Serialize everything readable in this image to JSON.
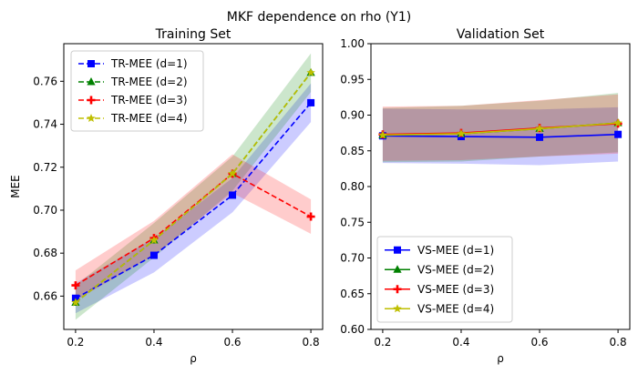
{
  "figure": {
    "suptitle": "MKF dependence on rho (Y1)"
  },
  "chart_data": [
    {
      "type": "line",
      "title": "Training Set",
      "xlabel": "ρ",
      "ylabel": "MEE",
      "xlim": [
        0.17,
        0.83
      ],
      "ylim": [
        0.6445,
        0.7775
      ],
      "xticks": [
        0.2,
        0.4,
        0.6,
        0.8
      ],
      "xtick_labels": [
        "0.2",
        "0.4",
        "0.6",
        "0.8"
      ],
      "yticks": [
        0.66,
        0.68,
        0.7,
        0.72,
        0.74,
        0.76
      ],
      "ytick_labels": [
        "0.66",
        "0.68",
        "0.70",
        "0.72",
        "0.74",
        "0.76"
      ],
      "grid": false,
      "legend_position": "top-left",
      "x": [
        0.2,
        0.4,
        0.6,
        0.8
      ],
      "series": [
        {
          "name": "TR-MEE (d=1)",
          "color": "#0000ff",
          "marker": "square",
          "linestyle": "dashed",
          "values": [
            0.659,
            0.679,
            0.707,
            0.75
          ],
          "band_low": [
            0.652,
            0.671,
            0.699,
            0.741
          ],
          "band_high": [
            0.666,
            0.687,
            0.715,
            0.759
          ]
        },
        {
          "name": "TR-MEE (d=2)",
          "color": "#008000",
          "marker": "triangle",
          "linestyle": "dashed",
          "values": [
            0.657,
            0.686,
            0.717,
            0.764
          ],
          "band_low": [
            0.649,
            0.678,
            0.709,
            0.755
          ],
          "band_high": [
            0.665,
            0.694,
            0.725,
            0.773
          ]
        },
        {
          "name": "TR-MEE (d=3)",
          "color": "#ff0000",
          "marker": "plus",
          "linestyle": "dashed",
          "values": [
            0.665,
            0.687,
            0.717,
            0.697
          ],
          "band_low": [
            0.658,
            0.679,
            0.708,
            0.689
          ],
          "band_high": [
            0.672,
            0.695,
            0.726,
            0.705
          ]
        },
        {
          "name": "TR-MEE (d=4)",
          "color": "#bfbf00",
          "marker": "star",
          "linestyle": "dashed",
          "values": [
            0.657,
            0.686,
            0.717,
            0.764
          ],
          "band_low": null,
          "band_high": null
        }
      ]
    },
    {
      "type": "line",
      "title": "Validation Set",
      "xlabel": "ρ",
      "ylabel": "",
      "xlim": [
        0.17,
        0.83
      ],
      "ylim": [
        0.6,
        1.0
      ],
      "xticks": [
        0.2,
        0.4,
        0.6,
        0.8
      ],
      "xtick_labels": [
        "0.2",
        "0.4",
        "0.6",
        "0.8"
      ],
      "yticks": [
        0.6,
        0.65,
        0.7,
        0.75,
        0.8,
        0.85,
        0.9,
        0.95,
        1.0
      ],
      "ytick_labels": [
        "0.60",
        "0.65",
        "0.70",
        "0.75",
        "0.80",
        "0.85",
        "0.90",
        "0.95",
        "1.00"
      ],
      "grid": false,
      "legend_position": "bottom-left",
      "x": [
        0.2,
        0.4,
        0.6,
        0.8
      ],
      "series": [
        {
          "name": "VS-MEE (d=1)",
          "color": "#0000ff",
          "marker": "square",
          "linestyle": "solid",
          "values": [
            0.871,
            0.87,
            0.869,
            0.873
          ],
          "band_low": [
            0.833,
            0.832,
            0.83,
            0.835
          ],
          "band_high": [
            0.909,
            0.908,
            0.908,
            0.911
          ]
        },
        {
          "name": "VS-MEE (d=2)",
          "color": "#008000",
          "marker": "triangle",
          "linestyle": "solid",
          "values": [
            0.872,
            0.874,
            0.881,
            0.889
          ],
          "band_low": [
            0.834,
            0.835,
            0.842,
            0.848
          ],
          "band_high": [
            0.91,
            0.913,
            0.92,
            0.931
          ]
        },
        {
          "name": "VS-MEE (d=3)",
          "color": "#ff0000",
          "marker": "plus",
          "linestyle": "solid",
          "values": [
            0.873,
            0.875,
            0.882,
            0.888
          ],
          "band_low": [
            0.836,
            0.837,
            0.842,
            0.846
          ],
          "band_high": [
            0.912,
            0.913,
            0.921,
            0.929
          ]
        },
        {
          "name": "VS-MEE (d=4)",
          "color": "#bfbf00",
          "marker": "star",
          "linestyle": "solid",
          "values": [
            0.872,
            0.874,
            0.881,
            0.889
          ],
          "band_low": null,
          "band_high": null
        }
      ]
    }
  ]
}
